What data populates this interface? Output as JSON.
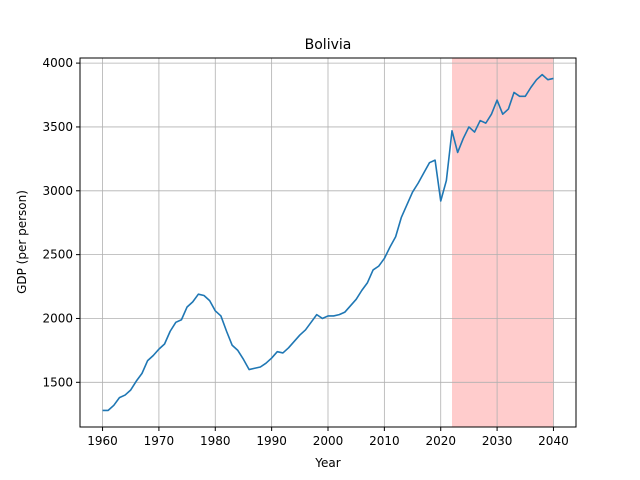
{
  "chart_data": {
    "type": "line",
    "title": "Bolivia",
    "xlabel": "Year",
    "ylabel": "GDP (per person)",
    "xlim": [
      1956,
      2044
    ],
    "ylim": [
      1150,
      4040
    ],
    "xticks": [
      1960,
      1970,
      1980,
      1990,
      2000,
      2010,
      2020,
      2030,
      2040
    ],
    "yticks": [
      1500,
      2000,
      2500,
      3000,
      3500,
      4000
    ],
    "grid": true,
    "colors": {
      "line": "#1f77b4",
      "shade": "#ffcccc",
      "grid": "#b0b0b0"
    },
    "shaded_region": {
      "x_start": 2022,
      "x_end": 2040
    },
    "series": [
      {
        "x": [
          1960,
          1961,
          1962,
          1963,
          1964,
          1965,
          1966,
          1967,
          1968,
          1969,
          1970,
          1971,
          1972,
          1973,
          1974,
          1975,
          1976,
          1977,
          1978,
          1979,
          1980,
          1981,
          1982,
          1983,
          1984,
          1985,
          1986,
          1987,
          1988,
          1989,
          1990,
          1991,
          1992,
          1993,
          1994,
          1995,
          1996,
          1997,
          1998,
          1999,
          2000,
          2001,
          2002,
          2003,
          2004,
          2005,
          2006,
          2007,
          2008,
          2009,
          2010,
          2011,
          2012,
          2013,
          2014,
          2015,
          2016,
          2017,
          2018,
          2019,
          2020,
          2021,
          2022,
          2023,
          2024,
          2025,
          2026,
          2027,
          2028,
          2029,
          2030,
          2031,
          2032,
          2033,
          2034,
          2035,
          2036,
          2037,
          2038,
          2039,
          2040
        ],
        "y": [
          1280,
          1280,
          1320,
          1380,
          1400,
          1440,
          1510,
          1570,
          1670,
          1710,
          1760,
          1800,
          1900,
          1970,
          1990,
          2090,
          2130,
          2190,
          2180,
          2140,
          2060,
          2020,
          1900,
          1790,
          1750,
          1680,
          1600,
          1610,
          1620,
          1650,
          1690,
          1740,
          1730,
          1770,
          1820,
          1870,
          1910,
          1970,
          2030,
          2000,
          2020,
          2020,
          2030,
          2050,
          2100,
          2150,
          2220,
          2280,
          2380,
          2410,
          2470,
          2560,
          2640,
          2790,
          2890,
          2990,
          3060,
          3140,
          3220,
          3240,
          2920,
          3080,
          3470,
          3300,
          3410,
          3500,
          3460,
          3550,
          3530,
          3600,
          3710,
          3600,
          3640,
          3770,
          3740,
          3740,
          3810,
          3870,
          3910,
          3870,
          3880
        ]
      }
    ]
  }
}
